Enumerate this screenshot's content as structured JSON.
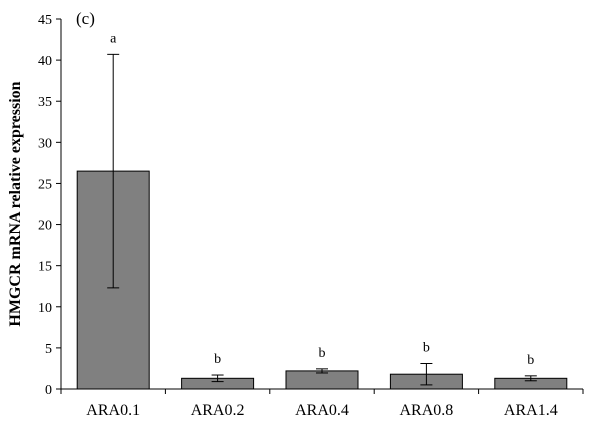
{
  "chart_data": {
    "type": "bar",
    "panel_label": "(c)",
    "title": "",
    "xlabel": "",
    "ylabel": "HMGCR mRNA relative expression",
    "ylim": [
      0,
      45
    ],
    "yticks": [
      0,
      5,
      10,
      15,
      20,
      25,
      30,
      35,
      40,
      45
    ],
    "grid": false,
    "legend": "none",
    "bar_color": "#808080",
    "error_bars": true,
    "categories": [
      "ARA0.1",
      "ARA0.2",
      "ARA0.4",
      "ARA0.8",
      "ARA1.4"
    ],
    "values": [
      26.5,
      1.3,
      2.2,
      1.8,
      1.3
    ],
    "errors": [
      14.2,
      0.4,
      0.25,
      1.3,
      0.3
    ],
    "significance": [
      "a",
      "b",
      "b",
      "b",
      "b"
    ]
  }
}
